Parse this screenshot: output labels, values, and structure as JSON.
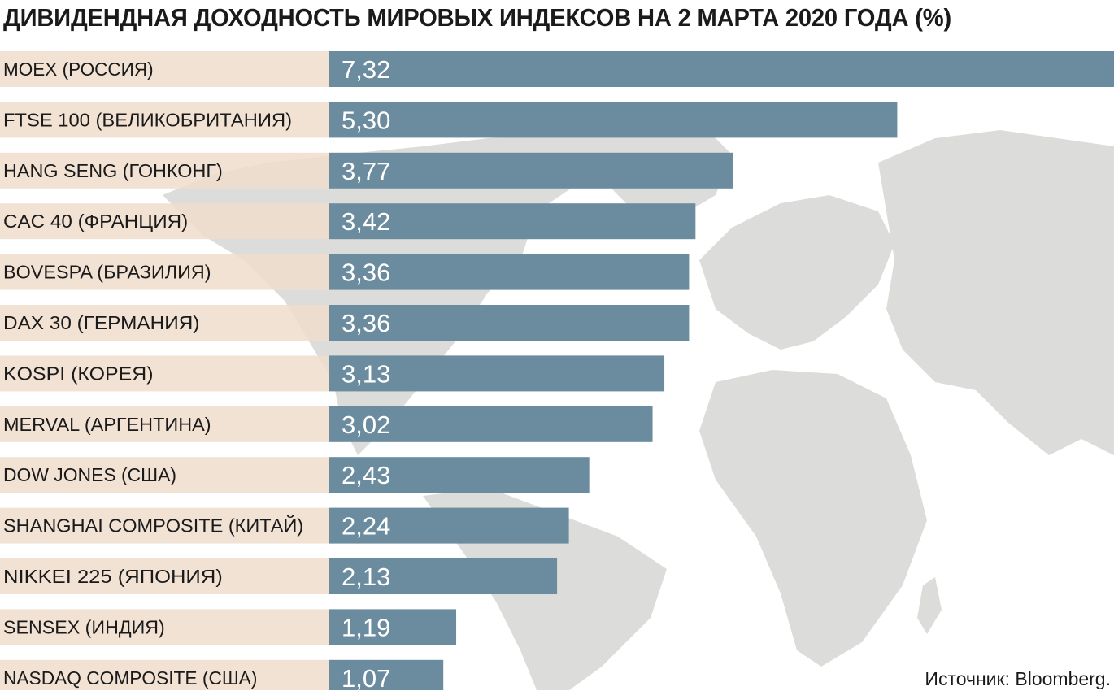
{
  "title": "ДИВИДЕНДНАЯ ДОХОДНОСТЬ МИРОВЫХ ИНДЕКСОВ НА 2 МАРТА 2020 ГОДА (%)",
  "source": "Источник: Bloomberg.",
  "colors": {
    "bar": "#6b8c9e",
    "label_bg": "#f0ddcc",
    "value_text": "#ffffff",
    "label_text": "#1a1a1a",
    "map": "#dcdcda"
  },
  "chart_data": {
    "type": "bar",
    "orientation": "horizontal",
    "title": "ДИВИДЕНДНАЯ ДОХОДНОСТЬ МИРОВЫХ ИНДЕКСОВ НА 2 МАРТА 2020 ГОДА (%)",
    "categories": [
      "MOEX (РОССИЯ)",
      "FTSE 100 (ВЕЛИКОБРИТАНИЯ)",
      "HANG SENG (ГОНКОНГ)",
      "CAC 40 (ФРАНЦИЯ)",
      "BOVESPA (БРАЗИЛИЯ)",
      "DAX 30 (ГЕРМАНИЯ)",
      "KOSPI (КОРЕЯ)",
      "MERVAL (АРГЕНТИНА)",
      "DOW JONES (США)",
      "SHANGHAI COMPOSITE (КИТАЙ)",
      "NIKKEI 225 (ЯПОНИЯ)",
      "SENSEX (ИНДИЯ)",
      "NASDAQ COMPOSITE (США)"
    ],
    "values": [
      7.32,
      5.3,
      3.77,
      3.42,
      3.36,
      3.36,
      3.13,
      3.02,
      2.43,
      2.24,
      2.13,
      1.19,
      1.07
    ],
    "value_labels": [
      "7,32",
      "5,30",
      "3,77",
      "3,42",
      "3,36",
      "3,36",
      "3,13",
      "3,02",
      "2,43",
      "2,24",
      "2,13",
      "1,19",
      "1,07"
    ],
    "xlabel": "",
    "ylabel": "",
    "xlim": [
      0,
      7.32
    ],
    "grid": false,
    "legend": "none"
  }
}
